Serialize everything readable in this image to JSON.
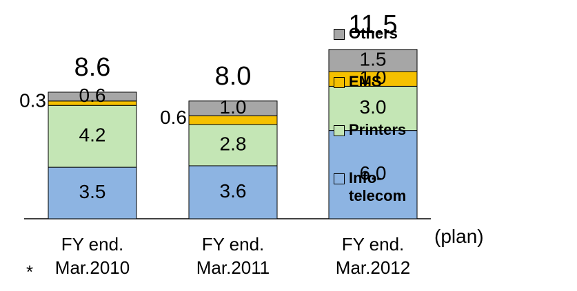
{
  "chart_data": {
    "type": "bar",
    "stacked": true,
    "categories": [
      "FY end. Mar.2010",
      "FY end. Mar.2011",
      "FY end. Mar.2012"
    ],
    "series": [
      {
        "name": "Info-telecom",
        "color": "#8db4e2",
        "values": [
          3.5,
          3.6,
          6.0
        ],
        "value_labels": [
          "3.5",
          "3.6",
          "6.0"
        ]
      },
      {
        "name": "Printers",
        "color": "#c4e6b5",
        "values": [
          4.2,
          2.8,
          3.0
        ],
        "value_labels": [
          "4.2",
          "2.8",
          "3.0"
        ]
      },
      {
        "name": "EMS",
        "color": "#f5c000",
        "values": [
          0.3,
          0.6,
          1.0
        ],
        "value_labels": [
          "0.3",
          "0.6",
          "1.0"
        ]
      },
      {
        "name": "Others",
        "color": "#a6a6a6",
        "values": [
          0.6,
          1.0,
          1.5
        ],
        "value_labels": [
          "0.6",
          "1.0",
          "1.5"
        ]
      }
    ],
    "totals": [
      "8.6",
      "8.0",
      "11.5"
    ],
    "annotations": [
      "(plan)",
      "*"
    ]
  }
}
